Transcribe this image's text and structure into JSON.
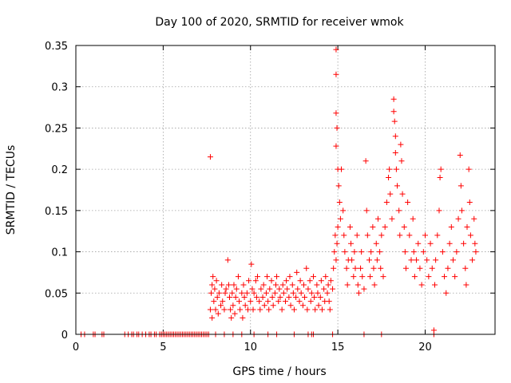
{
  "chart_data": {
    "type": "scatter",
    "title": "Day 100 of 2020, SRMTID for receiver wmok",
    "xlabel": "GPS time / hours",
    "ylabel": "SRMTID / TECUs",
    "xlim": [
      0,
      24
    ],
    "ylim": [
      0,
      0.35
    ],
    "xticks": [
      0,
      5,
      10,
      15,
      20
    ],
    "xtick_labels": [
      "0",
      "5",
      "10",
      "15",
      "20"
    ],
    "yticks": [
      0,
      0.05,
      0.1,
      0.15,
      0.2,
      0.25,
      0.3,
      0.35
    ],
    "ytick_labels": [
      "0",
      "0.05",
      "0.1",
      "0.15",
      "0.2",
      "0.25",
      "0.3",
      "0.35"
    ],
    "grid": true,
    "marker": "+",
    "series_color": "#ff0000",
    "series": [
      {
        "name": "SRMTID",
        "points": [
          [
            0.3,
            0
          ],
          [
            0.5,
            0
          ],
          [
            1.0,
            0
          ],
          [
            1.1,
            0
          ],
          [
            1.5,
            0
          ],
          [
            1.6,
            0
          ],
          [
            2.8,
            0
          ],
          [
            3.0,
            0
          ],
          [
            3.2,
            0
          ],
          [
            3.3,
            0
          ],
          [
            3.5,
            0
          ],
          [
            3.6,
            0
          ],
          [
            3.8,
            0
          ],
          [
            4.0,
            0
          ],
          [
            4.2,
            0
          ],
          [
            4.3,
            0
          ],
          [
            4.5,
            0
          ],
          [
            4.6,
            0
          ],
          [
            4.8,
            0
          ],
          [
            4.9,
            0
          ],
          [
            5.0,
            0
          ],
          [
            5.1,
            0
          ],
          [
            5.2,
            0
          ],
          [
            5.3,
            0
          ],
          [
            5.4,
            0
          ],
          [
            5.5,
            0
          ],
          [
            5.6,
            0
          ],
          [
            5.7,
            0
          ],
          [
            5.8,
            0
          ],
          [
            5.9,
            0
          ],
          [
            6.0,
            0
          ],
          [
            6.1,
            0
          ],
          [
            6.2,
            0
          ],
          [
            6.3,
            0
          ],
          [
            6.4,
            0
          ],
          [
            6.5,
            0
          ],
          [
            6.6,
            0
          ],
          [
            6.7,
            0
          ],
          [
            6.8,
            0
          ],
          [
            6.9,
            0
          ],
          [
            7.0,
            0
          ],
          [
            7.1,
            0
          ],
          [
            7.2,
            0
          ],
          [
            7.3,
            0
          ],
          [
            7.4,
            0
          ],
          [
            7.5,
            0
          ],
          [
            7.6,
            0
          ],
          [
            8.0,
            0
          ],
          [
            8.5,
            0
          ],
          [
            9.0,
            0
          ],
          [
            9.5,
            0
          ],
          [
            10.2,
            0
          ],
          [
            11.0,
            0
          ],
          [
            11.5,
            0
          ],
          [
            12.5,
            0
          ],
          [
            13.3,
            0
          ],
          [
            13.5,
            0
          ],
          [
            13.6,
            0
          ],
          [
            14.7,
            0
          ],
          [
            16.5,
            0
          ],
          [
            17.5,
            0
          ],
          [
            20.5,
            0
          ],
          [
            7.7,
            0.215
          ],
          [
            7.7,
            0.03
          ],
          [
            7.75,
            0.05
          ],
          [
            7.8,
            0.06
          ],
          [
            7.8,
            0.02
          ],
          [
            7.85,
            0.07
          ],
          [
            7.9,
            0.04
          ],
          [
            7.95,
            0.055
          ],
          [
            8.0,
            0.03
          ],
          [
            8.05,
            0.065
          ],
          [
            8.1,
            0.045
          ],
          [
            8.15,
            0.025
          ],
          [
            8.2,
            0.05
          ],
          [
            8.3,
            0.035
          ],
          [
            8.35,
            0.06
          ],
          [
            8.4,
            0.04
          ],
          [
            8.5,
            0.03
          ],
          [
            8.55,
            0.05
          ],
          [
            8.6,
            0.055
          ],
          [
            8.7,
            0.09
          ],
          [
            8.75,
            0.06
          ],
          [
            8.8,
            0.045
          ],
          [
            8.85,
            0.03
          ],
          [
            8.9,
            0.02
          ],
          [
            8.95,
            0.05
          ],
          [
            9.0,
            0.035
          ],
          [
            9.05,
            0.06
          ],
          [
            9.1,
            0.025
          ],
          [
            9.15,
            0.045
          ],
          [
            9.2,
            0.055
          ],
          [
            9.3,
            0.07
          ],
          [
            9.35,
            0.04
          ],
          [
            9.4,
            0.03
          ],
          [
            9.5,
            0.05
          ],
          [
            9.55,
            0.02
          ],
          [
            9.6,
            0.06
          ],
          [
            9.65,
            0.045
          ],
          [
            9.7,
            0.035
          ],
          [
            9.8,
            0.05
          ],
          [
            9.85,
            0.03
          ],
          [
            9.9,
            0.065
          ],
          [
            10.0,
            0.04
          ],
          [
            10.05,
            0.085
          ],
          [
            10.1,
            0.055
          ],
          [
            10.15,
            0.03
          ],
          [
            10.2,
            0.05
          ],
          [
            10.3,
            0.065
          ],
          [
            10.35,
            0.045
          ],
          [
            10.4,
            0.07
          ],
          [
            10.5,
            0.04
          ],
          [
            10.55,
            0.03
          ],
          [
            10.6,
            0.055
          ],
          [
            10.7,
            0.045
          ],
          [
            10.75,
            0.06
          ],
          [
            10.8,
            0.035
          ],
          [
            10.9,
            0.05
          ],
          [
            10.95,
            0.07
          ],
          [
            11.0,
            0.04
          ],
          [
            11.05,
            0.03
          ],
          [
            11.1,
            0.055
          ],
          [
            11.2,
            0.065
          ],
          [
            11.25,
            0.045
          ],
          [
            11.3,
            0.035
          ],
          [
            11.4,
            0.05
          ],
          [
            11.45,
            0.06
          ],
          [
            11.5,
            0.07
          ],
          [
            11.6,
            0.04
          ],
          [
            11.65,
            0.055
          ],
          [
            11.7,
            0.045
          ],
          [
            11.8,
            0.03
          ],
          [
            11.85,
            0.06
          ],
          [
            11.9,
            0.05
          ],
          [
            12.0,
            0.04
          ],
          [
            12.05,
            0.065
          ],
          [
            12.1,
            0.055
          ],
          [
            12.2,
            0.045
          ],
          [
            12.25,
            0.07
          ],
          [
            12.3,
            0.035
          ],
          [
            12.4,
            0.06
          ],
          [
            12.45,
            0.05
          ],
          [
            12.5,
            0.03
          ],
          [
            12.6,
            0.045
          ],
          [
            12.65,
            0.075
          ],
          [
            12.7,
            0.055
          ],
          [
            12.8,
            0.04
          ],
          [
            12.85,
            0.065
          ],
          [
            12.9,
            0.05
          ],
          [
            13.0,
            0.035
          ],
          [
            13.05,
            0.06
          ],
          [
            13.1,
            0.045
          ],
          [
            13.2,
            0.08
          ],
          [
            13.25,
            0.03
          ],
          [
            13.3,
            0.055
          ],
          [
            13.4,
            0.065
          ],
          [
            13.45,
            0.04
          ],
          [
            13.5,
            0.05
          ],
          [
            13.6,
            0.07
          ],
          [
            13.65,
            0.045
          ],
          [
            13.7,
            0.03
          ],
          [
            13.8,
            0.06
          ],
          [
            13.85,
            0.05
          ],
          [
            13.9,
            0.035
          ],
          [
            14.0,
            0.045
          ],
          [
            14.05,
            0.065
          ],
          [
            14.1,
            0.03
          ],
          [
            14.2,
            0.055
          ],
          [
            14.25,
            0.04
          ],
          [
            14.3,
            0.07
          ],
          [
            14.4,
            0.05
          ],
          [
            14.45,
            0.06
          ],
          [
            14.5,
            0.04
          ],
          [
            14.55,
            0.03
          ],
          [
            14.6,
            0.065
          ],
          [
            14.7,
            0.055
          ],
          [
            14.75,
            0.08
          ],
          [
            14.8,
            0.1
          ],
          [
            14.85,
            0.12
          ],
          [
            14.9,
            0.09
          ],
          [
            14.95,
            0.11
          ],
          [
            15.0,
            0.13
          ],
          [
            14.9,
            0.345
          ],
          [
            14.9,
            0.315
          ],
          [
            14.9,
            0.268
          ],
          [
            14.95,
            0.25
          ],
          [
            14.9,
            0.228
          ],
          [
            15.0,
            0.2
          ],
          [
            15.05,
            0.18
          ],
          [
            15.1,
            0.16
          ],
          [
            15.15,
            0.14
          ],
          [
            15.2,
            0.2
          ],
          [
            15.3,
            0.15
          ],
          [
            15.35,
            0.12
          ],
          [
            15.4,
            0.1
          ],
          [
            15.5,
            0.08
          ],
          [
            15.55,
            0.06
          ],
          [
            15.6,
            0.09
          ],
          [
            15.7,
            0.13
          ],
          [
            15.75,
            0.11
          ],
          [
            15.8,
            0.09
          ],
          [
            15.9,
            0.07
          ],
          [
            15.95,
            0.1
          ],
          [
            16.0,
            0.08
          ],
          [
            16.1,
            0.12
          ],
          [
            16.15,
            0.06
          ],
          [
            16.2,
            0.05
          ],
          [
            16.3,
            0.08
          ],
          [
            16.35,
            0.1
          ],
          [
            16.4,
            0.07
          ],
          [
            16.5,
            0.055
          ],
          [
            16.6,
            0.21
          ],
          [
            16.65,
            0.15
          ],
          [
            16.7,
            0.12
          ],
          [
            16.8,
            0.09
          ],
          [
            16.85,
            0.07
          ],
          [
            16.9,
            0.1
          ],
          [
            17.0,
            0.13
          ],
          [
            17.05,
            0.08
          ],
          [
            17.1,
            0.06
          ],
          [
            17.2,
            0.11
          ],
          [
            17.25,
            0.09
          ],
          [
            17.3,
            0.14
          ],
          [
            17.4,
            0.1
          ],
          [
            17.45,
            0.08
          ],
          [
            17.5,
            0.12
          ],
          [
            17.6,
            0.07
          ],
          [
            17.7,
            0.13
          ],
          [
            17.8,
            0.16
          ],
          [
            17.9,
            0.19
          ],
          [
            17.95,
            0.2
          ],
          [
            18.0,
            0.17
          ],
          [
            18.1,
            0.14
          ],
          [
            18.2,
            0.285
          ],
          [
            18.2,
            0.27
          ],
          [
            18.25,
            0.258
          ],
          [
            18.3,
            0.24
          ],
          [
            18.3,
            0.22
          ],
          [
            18.35,
            0.2
          ],
          [
            18.4,
            0.18
          ],
          [
            18.5,
            0.15
          ],
          [
            18.55,
            0.12
          ],
          [
            18.6,
            0.23
          ],
          [
            18.65,
            0.21
          ],
          [
            18.7,
            0.17
          ],
          [
            18.8,
            0.13
          ],
          [
            18.85,
            0.1
          ],
          [
            18.9,
            0.08
          ],
          [
            19.0,
            0.16
          ],
          [
            19.1,
            0.12
          ],
          [
            19.2,
            0.09
          ],
          [
            19.3,
            0.14
          ],
          [
            19.35,
            0.1
          ],
          [
            19.4,
            0.07
          ],
          [
            19.5,
            0.09
          ],
          [
            19.6,
            0.11
          ],
          [
            19.7,
            0.08
          ],
          [
            19.8,
            0.06
          ],
          [
            19.9,
            0.1
          ],
          [
            20.0,
            0.12
          ],
          [
            20.1,
            0.09
          ],
          [
            20.2,
            0.07
          ],
          [
            20.3,
            0.11
          ],
          [
            20.4,
            0.08
          ],
          [
            20.5,
            0.005
          ],
          [
            20.55,
            0.06
          ],
          [
            20.6,
            0.09
          ],
          [
            20.7,
            0.12
          ],
          [
            20.8,
            0.15
          ],
          [
            20.85,
            0.19
          ],
          [
            20.9,
            0.2
          ],
          [
            21.0,
            0.1
          ],
          [
            21.1,
            0.07
          ],
          [
            21.2,
            0.05
          ],
          [
            21.3,
            0.08
          ],
          [
            21.4,
            0.11
          ],
          [
            21.5,
            0.13
          ],
          [
            21.6,
            0.09
          ],
          [
            21.7,
            0.07
          ],
          [
            21.8,
            0.1
          ],
          [
            21.9,
            0.14
          ],
          [
            22.0,
            0.217
          ],
          [
            22.05,
            0.18
          ],
          [
            22.1,
            0.15
          ],
          [
            22.2,
            0.11
          ],
          [
            22.3,
            0.08
          ],
          [
            22.35,
            0.06
          ],
          [
            22.4,
            0.13
          ],
          [
            22.5,
            0.2
          ],
          [
            22.55,
            0.16
          ],
          [
            22.6,
            0.12
          ],
          [
            22.7,
            0.09
          ],
          [
            22.8,
            0.14
          ],
          [
            22.85,
            0.11
          ],
          [
            22.9,
            0.1
          ]
        ]
      }
    ]
  }
}
